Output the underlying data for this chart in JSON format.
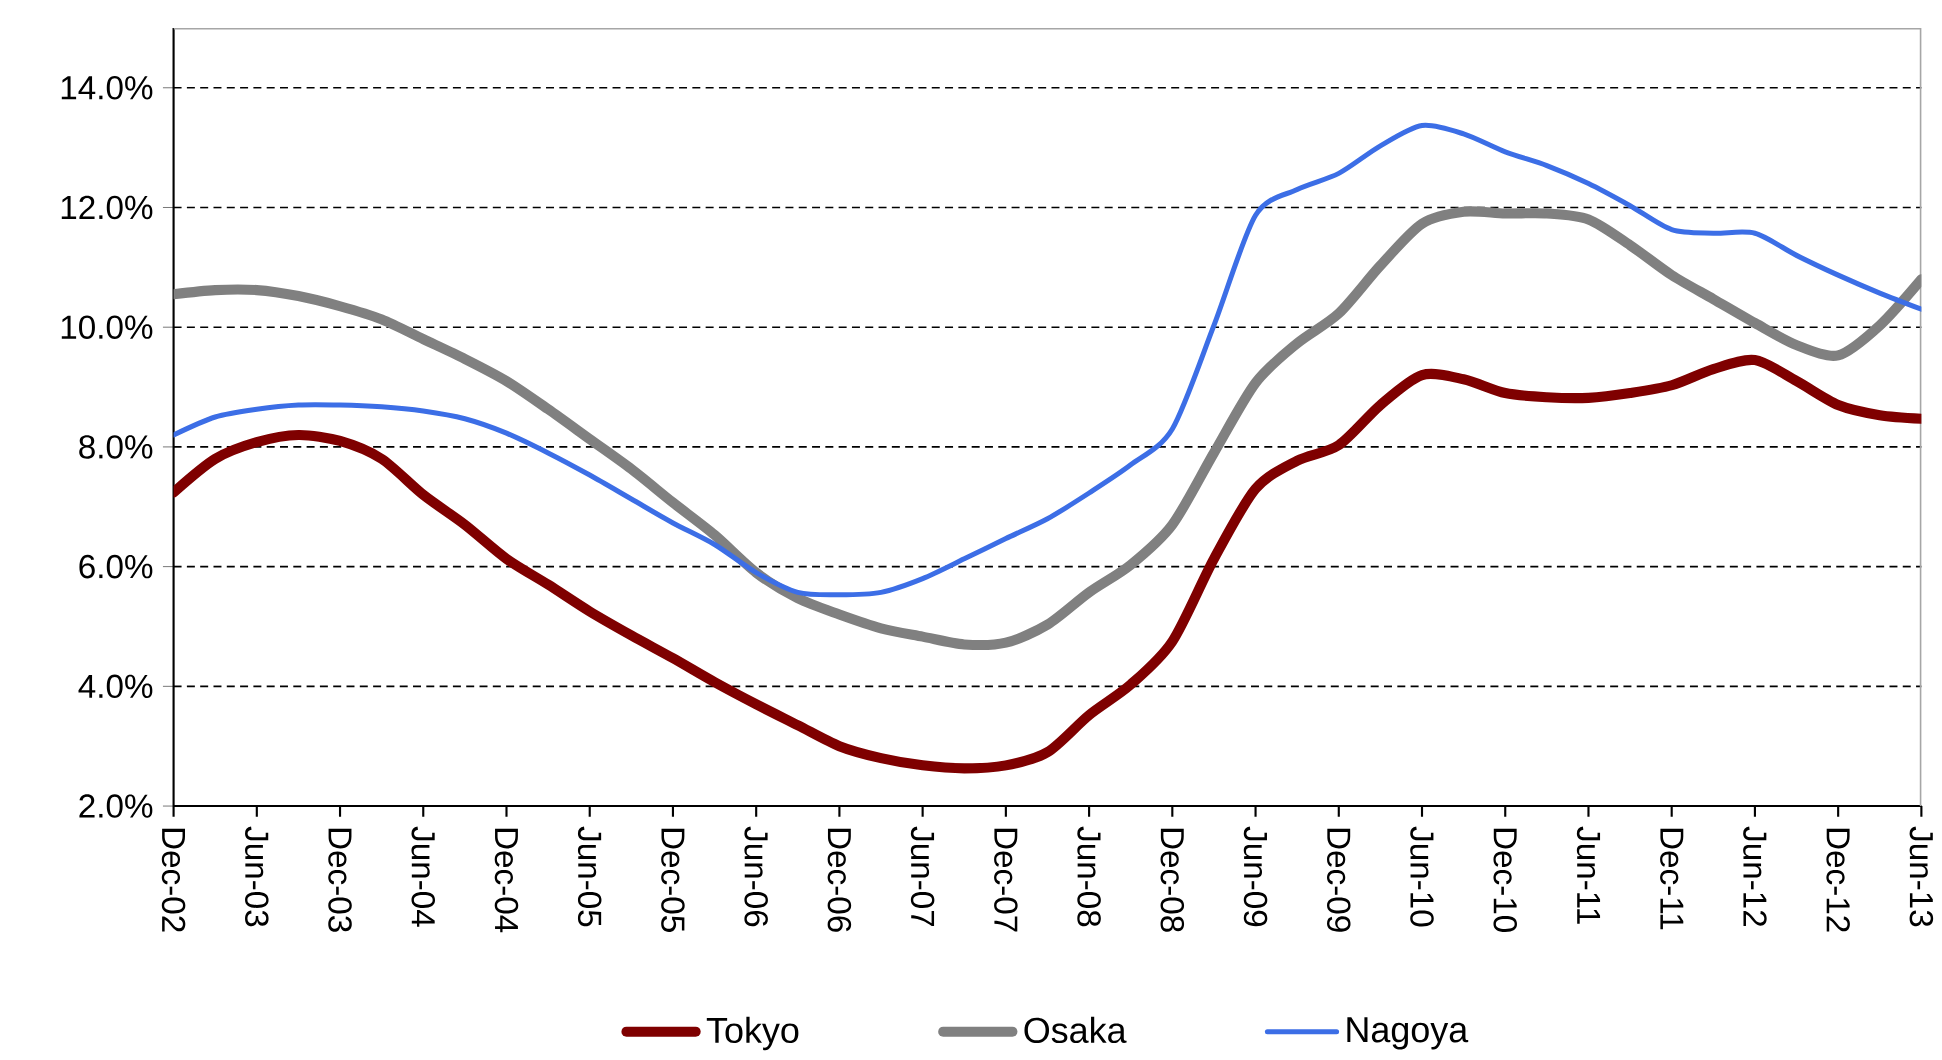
{
  "chart_data": {
    "type": "line",
    "x": [
      "2002-12",
      "2003-03",
      "2003-06",
      "2003-09",
      "2003-12",
      "2004-03",
      "2004-06",
      "2004-09",
      "2004-12",
      "2005-03",
      "2005-06",
      "2005-09",
      "2005-12",
      "2006-03",
      "2006-06",
      "2006-09",
      "2006-12",
      "2007-03",
      "2007-06",
      "2007-09",
      "2007-12",
      "2008-03",
      "2008-06",
      "2008-09",
      "2008-12",
      "2009-03",
      "2009-06",
      "2009-09",
      "2009-12",
      "2010-03",
      "2010-06",
      "2010-09",
      "2010-12",
      "2011-03",
      "2011-06",
      "2011-09",
      "2011-12",
      "2012-03",
      "2012-06",
      "2012-09",
      "2012-12",
      "2013-03",
      "2013-06"
    ],
    "series": [
      {
        "name": "Tokyo",
        "color": "#7f0000",
        "values": [
          7.24,
          7.8,
          8.08,
          8.2,
          8.1,
          7.8,
          7.2,
          6.7,
          6.13,
          5.7,
          5.25,
          4.85,
          4.47,
          4.07,
          3.7,
          3.35,
          3.0,
          2.8,
          2.68,
          2.63,
          2.68,
          2.9,
          3.52,
          4.03,
          4.75,
          6.13,
          7.3,
          7.77,
          8.03,
          8.7,
          9.2,
          9.13,
          8.9,
          8.83,
          8.82,
          8.9,
          9.03,
          9.3,
          9.45,
          9.1,
          8.7,
          8.53,
          8.47
        ]
      },
      {
        "name": "Osaka",
        "color": "#808080",
        "values": [
          10.55,
          10.62,
          10.62,
          10.52,
          10.35,
          10.13,
          9.8,
          9.47,
          9.1,
          8.63,
          8.13,
          7.63,
          7.07,
          6.53,
          5.9,
          5.47,
          5.2,
          4.97,
          4.83,
          4.7,
          4.73,
          5.03,
          5.57,
          6.03,
          6.7,
          7.9,
          9.07,
          9.73,
          10.23,
          11.03,
          11.73,
          11.93,
          11.9,
          11.9,
          11.8,
          11.37,
          10.87,
          10.47,
          10.07,
          9.7,
          9.53,
          10.03,
          10.8
        ]
      },
      {
        "name": "Nagoya",
        "color": "#3c6ee6",
        "values": [
          8.2,
          8.5,
          8.63,
          8.7,
          8.7,
          8.67,
          8.6,
          8.47,
          8.23,
          7.9,
          7.53,
          7.13,
          6.73,
          6.37,
          5.9,
          5.57,
          5.53,
          5.57,
          5.8,
          6.13,
          6.47,
          6.8,
          7.23,
          7.7,
          8.3,
          10.03,
          11.87,
          12.3,
          12.57,
          13.03,
          13.37,
          13.23,
          12.93,
          12.7,
          12.4,
          12.03,
          11.63,
          11.57,
          11.57,
          11.2,
          10.87,
          10.57,
          10.3
        ]
      }
    ],
    "xlim": [
      "2002-12",
      "2013-06"
    ],
    "xticks": [
      {
        "value": "2002-12",
        "label": "Dec-02"
      },
      {
        "value": "2003-06",
        "label": "Jun-03"
      },
      {
        "value": "2003-12",
        "label": "Dec-03"
      },
      {
        "value": "2004-06",
        "label": "Jun-04"
      },
      {
        "value": "2004-12",
        "label": "Dec-04"
      },
      {
        "value": "2005-06",
        "label": "Jun-05"
      },
      {
        "value": "2005-12",
        "label": "Dec-05"
      },
      {
        "value": "2006-06",
        "label": "Jun-06"
      },
      {
        "value": "2006-12",
        "label": "Dec-06"
      },
      {
        "value": "2007-06",
        "label": "Jun-07"
      },
      {
        "value": "2007-12",
        "label": "Dec-07"
      },
      {
        "value": "2008-06",
        "label": "Jun-08"
      },
      {
        "value": "2008-12",
        "label": "Dec-08"
      },
      {
        "value": "2009-06",
        "label": "Jun-09"
      },
      {
        "value": "2009-12",
        "label": "Dec-09"
      },
      {
        "value": "2010-06",
        "label": "Jun-10"
      },
      {
        "value": "2010-12",
        "label": "Dec-10"
      },
      {
        "value": "2011-06",
        "label": "Jun-11"
      },
      {
        "value": "2011-12",
        "label": "Dec-11"
      },
      {
        "value": "2012-06",
        "label": "Jun-12"
      },
      {
        "value": "2012-12",
        "label": "Dec-12"
      },
      {
        "value": "2013-06",
        "label": "Jun-13"
      }
    ],
    "ylim": [
      2,
      15
    ],
    "yticks": [
      {
        "value": 2,
        "label": "2.0%"
      },
      {
        "value": 4,
        "label": "4.0%"
      },
      {
        "value": 6,
        "label": "6.0%"
      },
      {
        "value": 8,
        "label": "8.0%"
      },
      {
        "value": 10,
        "label": "10.0%"
      },
      {
        "value": 12,
        "label": "12.0%"
      },
      {
        "value": 14,
        "label": "14.0%"
      }
    ],
    "grid": "y",
    "legend": "bottom",
    "marker": "none"
  }
}
